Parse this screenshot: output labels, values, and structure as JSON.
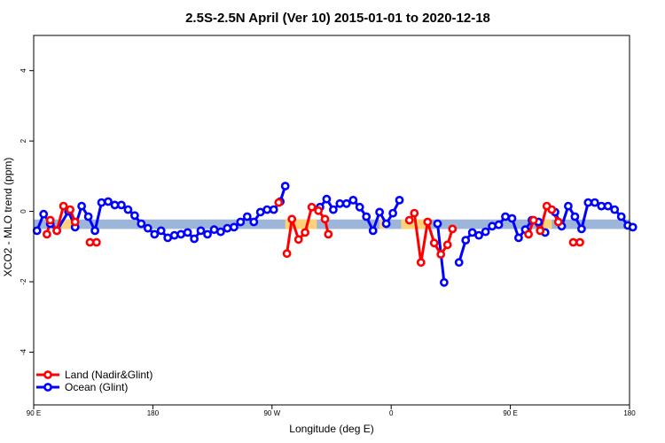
{
  "chart_data": {
    "type": "line",
    "title": "2.5S-2.5N April (Ver 10)   2015-01-01 to 2020-12-18",
    "xlabel": "Longitude (deg E)",
    "ylabel": "XCO2 - MLO trend (ppm)",
    "xlim": [
      90,
      450
    ],
    "ylim": [
      -5.5,
      5
    ],
    "x_ticks": [
      {
        "value": 90,
        "label": "90 E"
      },
      {
        "value": 162,
        "label": "180"
      },
      {
        "value": 234,
        "label": "90 W"
      },
      {
        "value": 306,
        "label": "0"
      },
      {
        "value": 378,
        "label": "90 E"
      },
      {
        "value": 450,
        "label": "180"
      }
    ],
    "y_ticks": [
      {
        "value": -4,
        "label": "-4"
      },
      {
        "value": -2,
        "label": "-2"
      },
      {
        "value": 0,
        "label": "0"
      },
      {
        "value": 2,
        "label": "2"
      },
      {
        "value": 4,
        "label": "4"
      }
    ],
    "bands": [
      {
        "name": "Ocean (Glint)",
        "color": "#9db5d9",
        "ymin": -0.5,
        "ymax": -0.23,
        "xmin": 90,
        "xmax": 450
      },
      {
        "name": "Land (Nadir&Glint)",
        "color": "#ffd27a",
        "ymin": -0.5,
        "ymax": -0.23,
        "segments": [
          [
            107,
            113
          ],
          [
            242,
            261
          ],
          [
            299,
            302
          ],
          [
            312,
            327
          ],
          [
            396,
            403
          ]
        ]
      }
    ],
    "legend": {
      "position": "bottom-left",
      "entries": [
        {
          "label": "Land (Nadir&Glint)",
          "color": "#ff0000"
        },
        {
          "label": "Ocean (Glint)",
          "color": "#0000ff"
        }
      ]
    },
    "series": [
      {
        "name": "Ocean (Glint)",
        "color": "#0000ff",
        "segments": [
          [
            [
              92,
              -0.55
            ],
            [
              96,
              -0.08
            ],
            [
              100,
              -0.35
            ],
            [
              104,
              -0.55
            ],
            [
              111,
              0.0
            ],
            [
              115,
              -0.45
            ],
            [
              119,
              0.15
            ],
            [
              123,
              -0.15
            ],
            [
              127,
              -0.55
            ],
            [
              131,
              0.25
            ],
            [
              135,
              0.28
            ],
            [
              139,
              0.18
            ],
            [
              143,
              0.18
            ],
            [
              147,
              0.05
            ],
            [
              151,
              -0.12
            ],
            [
              155,
              -0.35
            ],
            [
              159,
              -0.48
            ],
            [
              163,
              -0.65
            ],
            [
              167,
              -0.55
            ],
            [
              171,
              -0.75
            ],
            [
              175,
              -0.68
            ],
            [
              179,
              -0.65
            ],
            [
              183,
              -0.6
            ],
            [
              187,
              -0.78
            ],
            [
              191,
              -0.55
            ],
            [
              195,
              -0.65
            ],
            [
              199,
              -0.52
            ],
            [
              203,
              -0.58
            ],
            [
              207,
              -0.48
            ],
            [
              211,
              -0.45
            ],
            [
              215,
              -0.3
            ],
            [
              219,
              -0.15
            ],
            [
              223,
              -0.3
            ],
            [
              227,
              -0.02
            ],
            [
              231,
              0.05
            ],
            [
              235,
              0.05
            ],
            [
              239,
              0.28
            ],
            [
              242,
              0.72
            ]
          ],
          [
            [
              263,
              0.12
            ],
            [
              267,
              0.35
            ],
            [
              271,
              0.05
            ],
            [
              275,
              0.22
            ],
            [
              279,
              0.22
            ],
            [
              283,
              0.32
            ],
            [
              287,
              0.12
            ],
            [
              291,
              -0.15
            ],
            [
              295,
              -0.55
            ],
            [
              299,
              -0.02
            ],
            [
              303,
              -0.35
            ],
            [
              307,
              -0.05
            ],
            [
              311,
              0.32
            ]
          ],
          [
            [
              334,
              -0.35
            ],
            [
              338,
              -2.02
            ]
          ],
          [
            [
              347,
              -1.45
            ],
            [
              351,
              -0.82
            ],
            [
              355,
              -0.6
            ],
            [
              359,
              -0.68
            ],
            [
              363,
              -0.58
            ],
            [
              367,
              -0.42
            ],
            [
              371,
              -0.38
            ],
            [
              375,
              -0.15
            ],
            [
              379,
              -0.2
            ],
            [
              383,
              -0.75
            ],
            [
              387,
              -0.52
            ],
            [
              391,
              -0.25
            ],
            [
              395,
              -0.3
            ],
            [
              399,
              -0.6
            ]
          ],
          [
            [
              405,
              -0.02
            ],
            [
              409,
              -0.42
            ],
            [
              413,
              0.15
            ],
            [
              417,
              -0.15
            ],
            [
              421,
              -0.5
            ],
            [
              425,
              0.25
            ],
            [
              429,
              0.25
            ],
            [
              433,
              0.15
            ],
            [
              437,
              0.15
            ],
            [
              441,
              0.05
            ],
            [
              445,
              -0.15
            ],
            [
              449,
              -0.4
            ],
            [
              452,
              -0.45
            ]
          ]
        ]
      },
      {
        "name": "Land (Nadir&Glint)",
        "color": "#ff0000",
        "segments": [
          [
            [
              98,
              -0.65
            ],
            [
              100,
              -0.25
            ],
            [
              104,
              -0.55
            ],
            [
              108,
              0.15
            ],
            [
              112,
              0.05
            ],
            [
              115,
              -0.3
            ]
          ],
          [
            [
              124,
              -0.88
            ],
            [
              128,
              -0.88
            ]
          ],
          [
            [
              238,
              0.25
            ]
          ],
          [
            [
              243,
              -1.2
            ],
            [
              246,
              -0.22
            ],
            [
              250,
              -0.8
            ],
            [
              254,
              -0.6
            ],
            [
              258,
              0.12
            ],
            [
              262,
              0.02
            ],
            [
              266,
              -0.22
            ],
            [
              268,
              -0.65
            ]
          ],
          [
            [
              317,
              -0.25
            ],
            [
              320,
              -0.05
            ],
            [
              324,
              -1.45
            ],
            [
              328,
              -0.3
            ],
            [
              332,
              -0.9
            ],
            [
              336,
              -1.22
            ],
            [
              340,
              -0.95
            ],
            [
              343,
              -0.5
            ]
          ],
          [
            [
              389,
              -0.65
            ],
            [
              392,
              -0.25
            ],
            [
              396,
              -0.55
            ],
            [
              400,
              0.15
            ],
            [
              403,
              0.05
            ],
            [
              407,
              -0.3
            ]
          ],
          [
            [
              416,
              -0.88
            ],
            [
              420,
              -0.88
            ]
          ]
        ]
      }
    ]
  }
}
